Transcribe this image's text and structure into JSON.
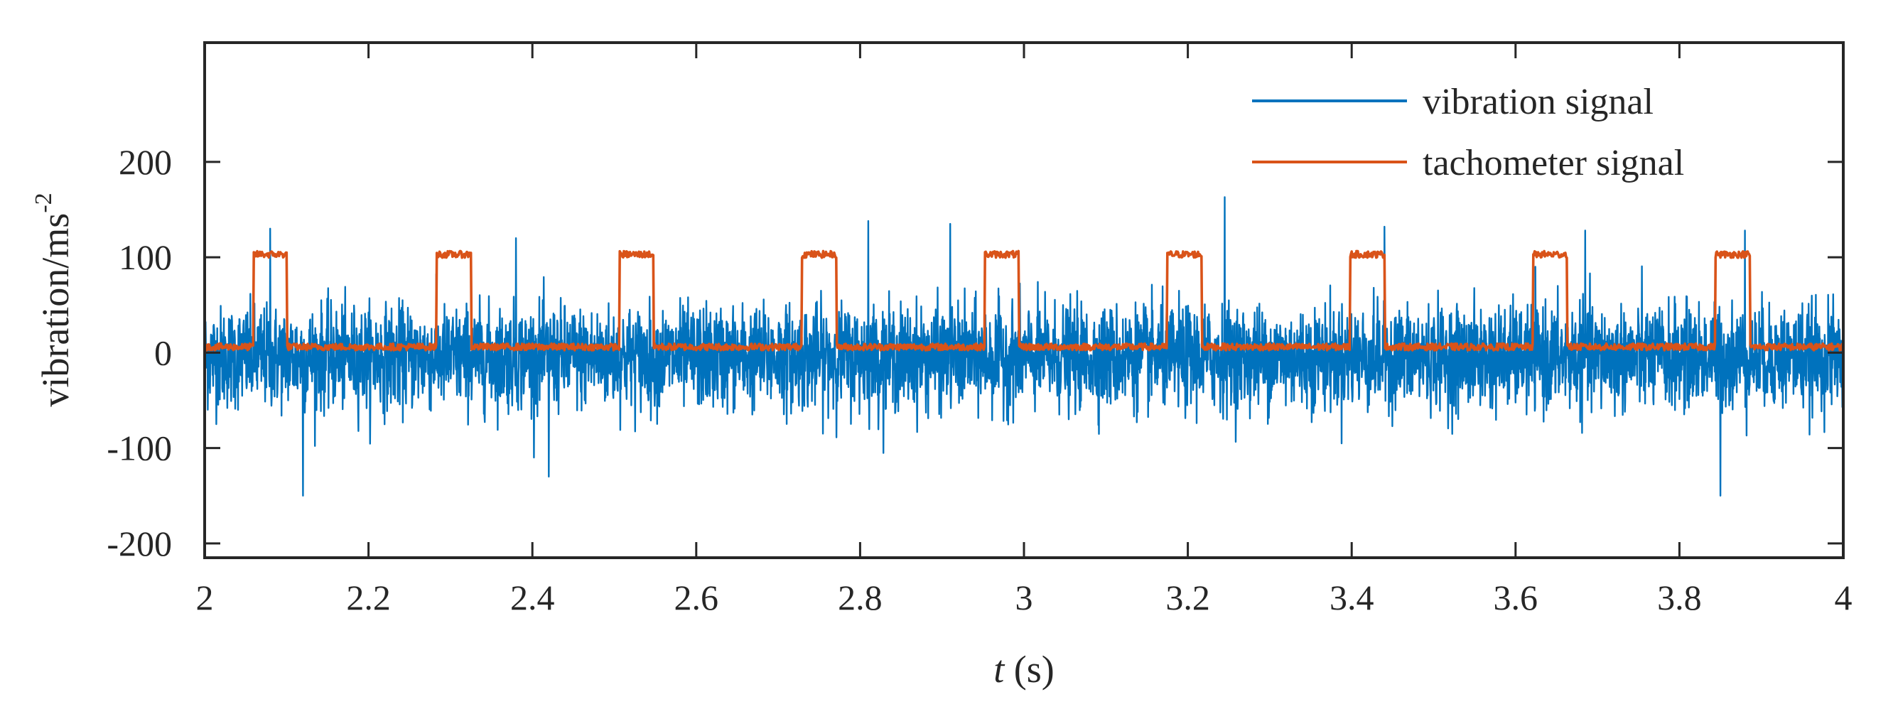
{
  "chart_data": {
    "type": "line",
    "title": "",
    "xlabel": {
      "italic": "t",
      "rest": " (s)"
    },
    "ylabel": {
      "base": "vibration/ms",
      "sup": "-2"
    },
    "xlim": [
      2,
      4
    ],
    "ylim": [
      -215,
      325
    ],
    "x_ticks": [
      2,
      2.2,
      2.4,
      2.6,
      2.8,
      3,
      3.2,
      3.4,
      3.6,
      3.8,
      4
    ],
    "x_tick_labels": [
      "2",
      "2.2",
      "2.4",
      "2.6",
      "2.8",
      "3",
      "3.2",
      "3.4",
      "3.6",
      "3.8",
      "4"
    ],
    "y_ticks": [
      -200,
      -100,
      0,
      100,
      200
    ],
    "y_tick_labels": [
      "-200",
      "-100",
      "0",
      "100",
      "200"
    ],
    "grid": false,
    "legend_position": "top-right",
    "series": [
      {
        "name": "vibration signal",
        "color": "#0072BD",
        "kind": "noise",
        "mean": -5,
        "typical_range": [
          -75,
          85
        ],
        "peaks": [
          {
            "x": 2.08,
            "y": 130
          },
          {
            "x": 2.12,
            "y": -150
          },
          {
            "x": 2.38,
            "y": 120
          },
          {
            "x": 2.42,
            "y": -130
          },
          {
            "x": 2.81,
            "y": 138
          },
          {
            "x": 2.91,
            "y": 135
          },
          {
            "x": 3.245,
            "y": 163
          },
          {
            "x": 3.44,
            "y": 132
          },
          {
            "x": 3.685,
            "y": 128
          },
          {
            "x": 3.85,
            "y": -150
          },
          {
            "x": 3.88,
            "y": 128
          }
        ]
      },
      {
        "name": "tachometer signal",
        "color": "#D95319",
        "kind": "pulse",
        "low": 6,
        "high": 103,
        "pulses": [
          [
            2.06,
            2.1
          ],
          [
            2.283,
            2.325
          ],
          [
            2.506,
            2.548
          ],
          [
            2.729,
            2.771
          ],
          [
            2.952,
            2.994
          ],
          [
            3.175,
            3.217
          ],
          [
            3.398,
            3.44
          ],
          [
            3.621,
            3.663
          ],
          [
            3.844,
            3.886
          ]
        ]
      }
    ]
  }
}
